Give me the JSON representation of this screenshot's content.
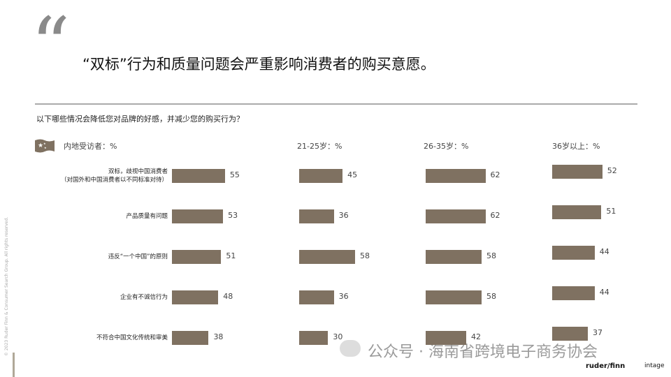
{
  "quote_mark": "“",
  "headline": "“双标”行为和质量问题会严重影响消费者的购买意愿。",
  "question": "以下哪些情况会降低您对品牌的好感，并减少您的购买行为？",
  "copyright": "© 2023 Ruder Finn & Consumer Search Group. All rights reserved.",
  "watermark": "公众号 · 海南省跨境电子商务协会",
  "logos": [
    "ruder/finn",
    "intage"
  ],
  "chart_data": [
    {
      "type": "bar",
      "orientation": "horizontal",
      "title": "内地受访者：%",
      "color": "#7f7161",
      "categories": [
        "双标，歧视中国消费者\n（对国外和中国消费者以不同标准对待）",
        "产品质量有问题",
        "违反“一个中国”的原则",
        "企业有不诚信行为",
        "不符合中国文化传统和审美"
      ],
      "values": [
        55,
        53,
        51,
        48,
        38
      ]
    },
    {
      "type": "bar",
      "orientation": "horizontal",
      "title": "21-25岁：%",
      "color": "#7f7161",
      "values": [
        45,
        36,
        58,
        36,
        30
      ]
    },
    {
      "type": "bar",
      "orientation": "horizontal",
      "title": "26-35岁：%",
      "color": "#7f7161",
      "values": [
        62,
        62,
        58,
        58,
        42
      ]
    },
    {
      "type": "bar",
      "orientation": "horizontal",
      "title": "36岁以上：%",
      "color": "#7f7161",
      "values": [
        52,
        51,
        44,
        44,
        37
      ]
    }
  ]
}
